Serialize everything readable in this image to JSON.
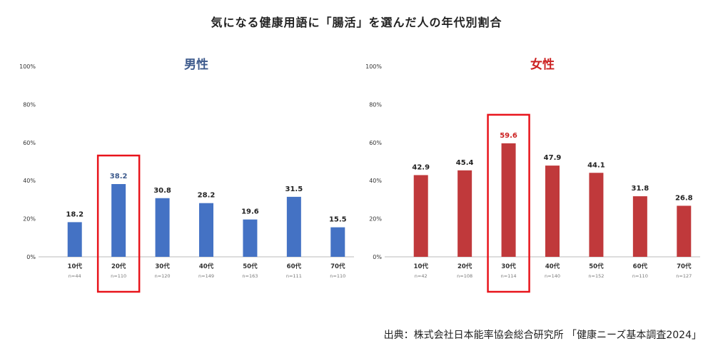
{
  "title": "気になる健康用語に「腸活」を選んだ人の年代別割合",
  "source": "出典：株式会社日本能率協会総合研究所 「健康ニーズ基本調査2024」",
  "colors": {
    "male_bar": "#4472c4",
    "female_bar": "#c0393b",
    "highlight_box": "#e8141b",
    "male_highlight_label": "#3d5a8c",
    "female_highlight_label": "#cc2222"
  },
  "chart_data": [
    {
      "type": "bar",
      "title": "男性",
      "categories": [
        "10代",
        "20代",
        "30代",
        "40代",
        "50代",
        "60代",
        "70代"
      ],
      "sample_sizes": [
        "n=44",
        "n=110",
        "n=120",
        "n=149",
        "n=163",
        "n=111",
        "n=110"
      ],
      "values": [
        18.2,
        38.2,
        30.8,
        28.2,
        19.6,
        31.5,
        15.5
      ],
      "value_labels": [
        "18.2",
        "38.2",
        "30.8",
        "28.2",
        "19.6",
        "31.5",
        "15.5"
      ],
      "y_ticks": [
        "0%",
        "20%",
        "40%",
        "60%",
        "80%",
        "100%"
      ],
      "ylim": [
        0,
        100
      ],
      "highlight_index": 1,
      "grid": false
    },
    {
      "type": "bar",
      "title": "女性",
      "categories": [
        "10代",
        "20代",
        "30代",
        "40代",
        "50代",
        "60代",
        "70代"
      ],
      "sample_sizes": [
        "n=42",
        "n=108",
        "n=114",
        "n=140",
        "n=152",
        "n=110",
        "n=127"
      ],
      "values": [
        42.9,
        45.4,
        59.6,
        47.9,
        44.1,
        31.8,
        26.8
      ],
      "value_labels": [
        "42.9",
        "45.4",
        "59.6",
        "47.9",
        "44.1",
        "31.8",
        "26.8"
      ],
      "y_ticks": [
        "0%",
        "20%",
        "40%",
        "60%",
        "80%",
        "100%"
      ],
      "ylim": [
        0,
        100
      ],
      "highlight_index": 2,
      "grid": false
    }
  ]
}
